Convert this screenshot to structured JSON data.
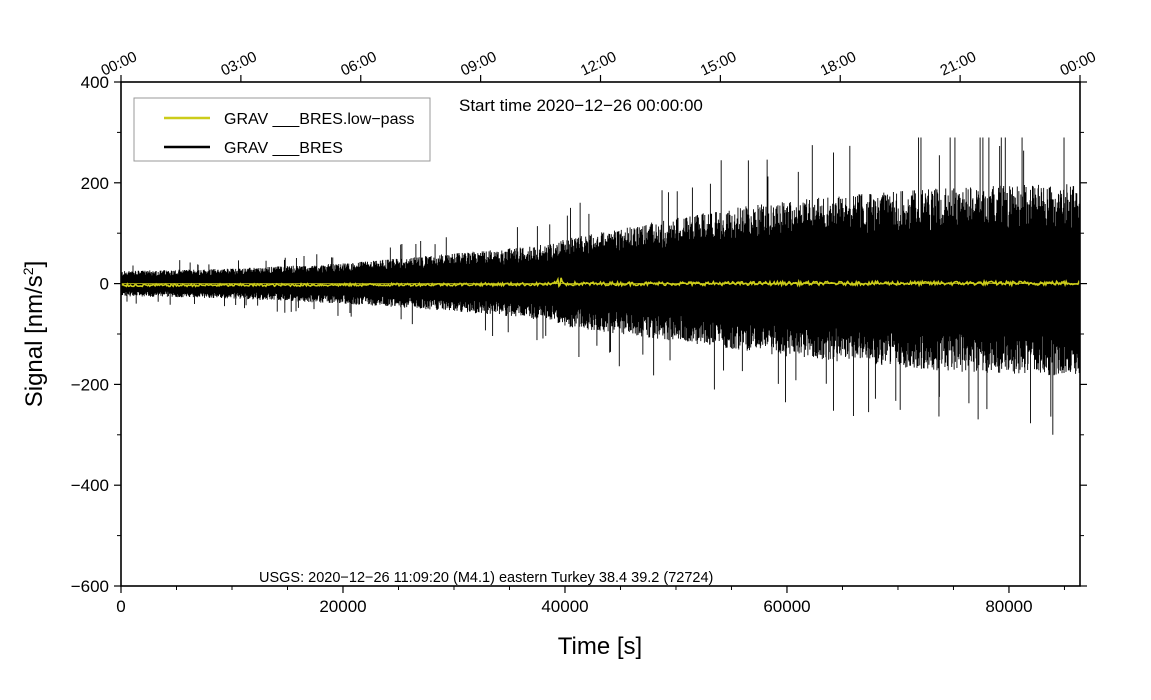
{
  "chart_data": {
    "type": "line",
    "title": "",
    "start_time": "Start time 2020−12−26 00:00:00",
    "event_annotation": "USGS: 2020−12−26 11:09:20 (M4.1) eastern Turkey 38.4 39.2 (72724)",
    "xlabel": "Time [s]",
    "ylabel": "Signal [nm/s",
    "ylabel_sup": "2",
    "ylabel_end": "]",
    "xlim": [
      0,
      86400
    ],
    "ylim": [
      -600,
      400
    ],
    "x_ticks": [
      0,
      20000,
      40000,
      60000,
      80000
    ],
    "x_tick_labels": [
      "0",
      "20000",
      "40000",
      "60000",
      "80000"
    ],
    "x_minor_step": 5000,
    "y_ticks": [
      400,
      200,
      0,
      -200,
      -400,
      -600
    ],
    "y_tick_labels": [
      "400",
      "200",
      "0",
      "−200",
      "−400",
      "−600"
    ],
    "y_minor_step": 100,
    "top_axis_ticks_s": [
      0,
      10800,
      21600,
      32400,
      43200,
      54000,
      64800,
      75600,
      86400
    ],
    "top_axis_labels": [
      "00:00",
      "03:00",
      "06:00",
      "09:00",
      "12:00",
      "15:00",
      "18:00",
      "21:00",
      "00:00"
    ],
    "legend": [
      {
        "label": "GRAV ___BRES.low−pass",
        "color": "#cccc1a"
      },
      {
        "label": "GRAV ___BRES",
        "color": "#000000"
      }
    ],
    "legend_position": "top-left",
    "series": [
      {
        "name": "GRAV ___BRES",
        "color": "#000000",
        "envelope_x": [
          0,
          10000,
          20000,
          30000,
          35000,
          39000,
          40000,
          45000,
          50000,
          55000,
          60000,
          65000,
          70000,
          75000,
          80000,
          86400
        ],
        "envelope_upper": [
          25,
          30,
          40,
          60,
          70,
          80,
          90,
          110,
          130,
          150,
          165,
          175,
          185,
          190,
          195,
          200
        ],
        "envelope_lower": [
          -25,
          -30,
          -40,
          -55,
          -65,
          -75,
          -85,
          -100,
          -115,
          -130,
          -145,
          -155,
          -165,
          -175,
          -180,
          -185
        ],
        "max_value": 290,
        "min_value": -300
      },
      {
        "name": "GRAV ___BRES.low-pass",
        "color": "#cccc1a",
        "envelope_x": [
          0,
          20000,
          39000,
          39500,
          40000,
          60000,
          86400
        ],
        "envelope_upper": [
          -1,
          0,
          2,
          15,
          3,
          4,
          5
        ],
        "envelope_lower": [
          -6,
          -5,
          -4,
          -8,
          -4,
          -3,
          -3
        ]
      }
    ]
  }
}
